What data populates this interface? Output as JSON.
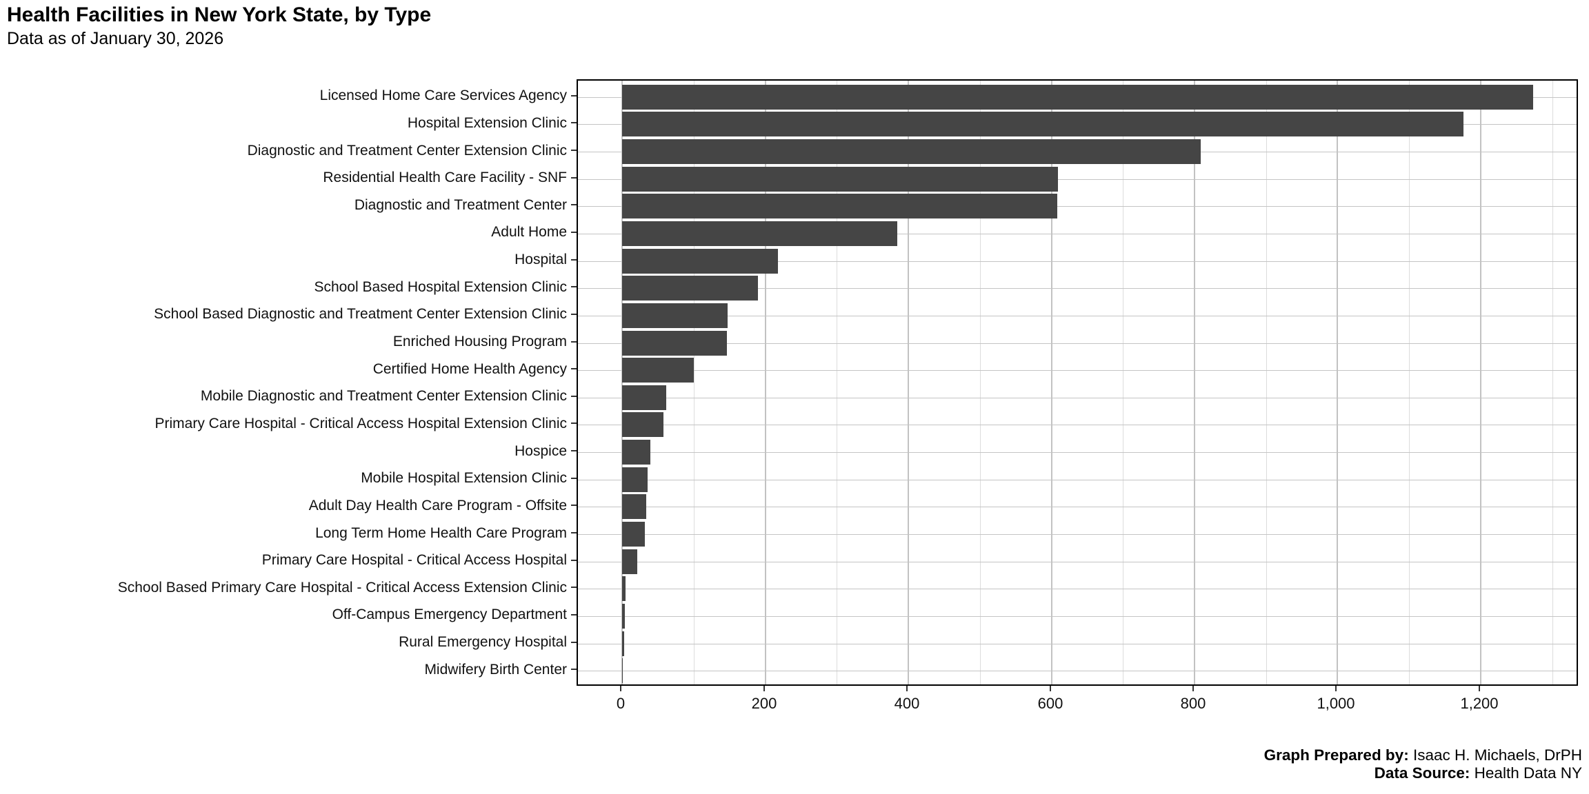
{
  "title": "Health Facilities in New York State, by Type",
  "subtitle": "Data as of January 30, 2026",
  "footer": {
    "prepared_by_label": "Graph Prepared by:",
    "prepared_by_value": " Isaac H. Michaels, DrPH",
    "source_label": "Data Source:",
    "source_value": " Health Data NY"
  },
  "chart_data": {
    "type": "bar",
    "orientation": "horizontal",
    "title": "Health Facilities in New York State, by Type",
    "subtitle": "Data as of January 30, 2026",
    "categories": [
      "Licensed Home Care Services Agency",
      "Hospital Extension Clinic",
      "Diagnostic and Treatment Center Extension Clinic",
      "Residential Health Care Facility - SNF",
      "Diagnostic and Treatment Center",
      "Adult Home",
      "Hospital",
      "School Based Hospital Extension Clinic",
      "School Based Diagnostic and Treatment Center Extension Clinic",
      "Enriched Housing Program",
      "Certified Home Health Agency",
      "Mobile Diagnostic and Treatment Center Extension Clinic",
      "Primary Care Hospital - Critical Access Hospital Extension Clinic",
      "Hospice",
      "Mobile Hospital Extension Clinic",
      "Adult Day Health Care Program - Offsite",
      "Long Term Home Health Care Program",
      "Primary Care Hospital - Critical Access Hospital",
      "School Based Primary Care Hospital - Critical Access Extension Clinic",
      "Off-Campus Emergency Department",
      "Rural Emergency Hospital",
      "Midwifery Birth Center"
    ],
    "values": [
      1274,
      1176,
      809,
      609,
      608,
      385,
      218,
      190,
      148,
      147,
      100,
      62,
      58,
      40,
      36,
      34,
      32,
      21,
      5,
      4,
      3,
      1
    ],
    "xlabel": "",
    "ylabel": "",
    "x_ticks": [
      0,
      200,
      400,
      600,
      800,
      1000,
      1200
    ],
    "x_tick_labels": [
      "0",
      "200",
      "400",
      "600",
      "800",
      "1,000",
      "1,200"
    ],
    "x_minor_ticks": [
      100,
      300,
      500,
      700,
      900,
      1100,
      1300
    ],
    "xlim": [
      -62,
      1338
    ],
    "grid": true,
    "legend": false,
    "bar_color": "#454545",
    "grid_major_color": "#c2c2c2",
    "grid_minor_color": "#dcdcdc",
    "panel_border_color": "#000000"
  }
}
